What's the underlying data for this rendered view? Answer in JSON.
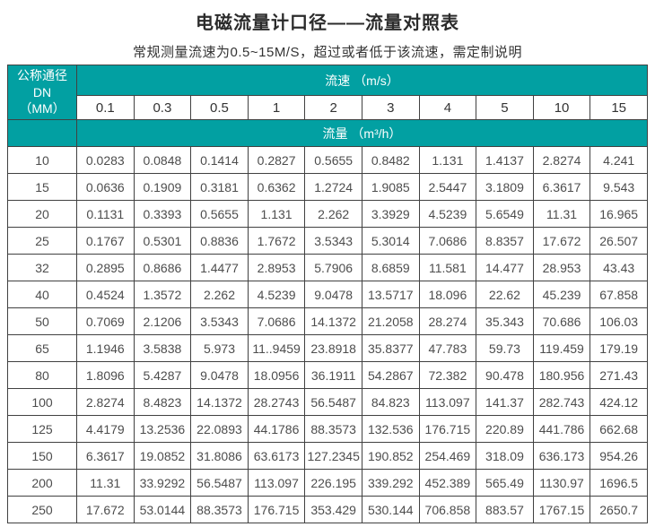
{
  "title": "电磁流量计口径——流量对照表",
  "subtitle": "常规测量流速为0.5~15M/S，超过或者低于该流速，需定制说明",
  "colors": {
    "header_teal": "#02a0a2",
    "header_text": "#ffffff",
    "grid_border": "#414141",
    "corner_divider_red": "#814a4a",
    "body_text": "#4d4d4d"
  },
  "table": {
    "corner_line1": "公称通径DN",
    "corner_line2": "（MM）",
    "velocity_header": "流速 （m/s）",
    "flow_header": "流量 （m³/h）",
    "velocities": [
      "0.1",
      "0.3",
      "0.5",
      "1",
      "2",
      "3",
      "4",
      "5",
      "10",
      "15"
    ],
    "rows": [
      {
        "dn": "10",
        "values": [
          "0.0283",
          "0.0848",
          "0.1414",
          "0.2827",
          "0.5655",
          "0.8482",
          "1.131",
          "1.4137",
          "2.8274",
          "4.241"
        ]
      },
      {
        "dn": "15",
        "values": [
          "0.0636",
          "0.1909",
          "0.3181",
          "0.6362",
          "1.2724",
          "1.9085",
          "2.5447",
          "3.1809",
          "6.3617",
          "9.543"
        ]
      },
      {
        "dn": "20",
        "values": [
          "0.1131",
          "0.3393",
          "0.5655",
          "1.131",
          "2.262",
          "3.3929",
          "4.5239",
          "5.6549",
          "11.31",
          "16.965"
        ]
      },
      {
        "dn": "25",
        "values": [
          "0.1767",
          "0.5301",
          "0.8836",
          "1.7672",
          "3.5343",
          "5.3014",
          "7.0686",
          "8.8357",
          "17.672",
          "26.507"
        ]
      },
      {
        "dn": "32",
        "values": [
          "0.2895",
          "0.8686",
          "1.4477",
          "2.8953",
          "5.7906",
          "8.6859",
          "11.581",
          "14.477",
          "28.953",
          "43.43"
        ]
      },
      {
        "dn": "40",
        "values": [
          "0.4524",
          "1.3572",
          "2.262",
          "4.5239",
          "9.0478",
          "13.5717",
          "18.096",
          "22.62",
          "45.239",
          "67.858"
        ]
      },
      {
        "dn": "50",
        "values": [
          "0.7069",
          "2.1206",
          "3.5343",
          "7.0686",
          "14.1372",
          "21.2058",
          "28.274",
          "35.343",
          "70.686",
          "106.03"
        ]
      },
      {
        "dn": "65",
        "values": [
          "1.1946",
          "3.5838",
          "5.973",
          "11..9459",
          "23.8918",
          "35.8377",
          "47.783",
          "59.73",
          "119.459",
          "179.19"
        ]
      },
      {
        "dn": "80",
        "values": [
          "1.8096",
          "5.4287",
          "9.0478",
          "18.0956",
          "36.1911",
          "54.2867",
          "72.382",
          "90.478",
          "180.956",
          "271.43"
        ]
      },
      {
        "dn": "100",
        "values": [
          "2.8274",
          "8.4823",
          "14.1372",
          "28.2743",
          "56.5487",
          "84.823",
          "113.097",
          "141.37",
          "282.743",
          "424.12"
        ]
      },
      {
        "dn": "125",
        "values": [
          "4.4179",
          "13.2536",
          "22.0893",
          "44.1786",
          "88.3573",
          "132.536",
          "176.715",
          "220.89",
          "441.786",
          "662.68"
        ]
      },
      {
        "dn": "150",
        "values": [
          "6.3617",
          "19.0852",
          "31.8086",
          "63.6173",
          "127.2345",
          "190.852",
          "254.469",
          "318.09",
          "636.173",
          "954.26"
        ]
      },
      {
        "dn": "200",
        "values": [
          "11.31",
          "33.9292",
          "56.5487",
          "113.097",
          "226.195",
          "339.292",
          "452.389",
          "565.49",
          "1130.97",
          "1696.5"
        ]
      },
      {
        "dn": "250",
        "values": [
          "17.672",
          "53.0144",
          "88.3573",
          "176.715",
          "353.429",
          "530.144",
          "706.858",
          "883.57",
          "1767.15",
          "2650.7"
        ]
      }
    ]
  }
}
